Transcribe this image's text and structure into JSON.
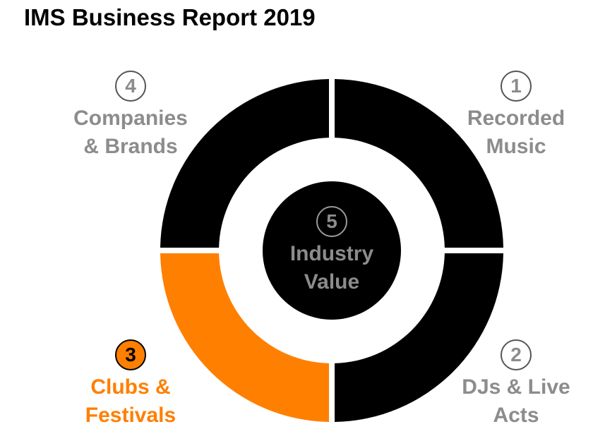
{
  "title": "IMS Business Report 2019",
  "colors": {
    "segment_default": "#000000",
    "segment_highlight": "#FF7F00",
    "label_default": "#8C8C8C",
    "label_highlight": "#FF7F00",
    "number_circle_border": "#555555",
    "center_number_border": "#9A9A9A"
  },
  "segments": [
    {
      "number": "1",
      "label": "Recorded Music",
      "lines": [
        "Recorded",
        "Music"
      ],
      "position": "top-right",
      "highlighted": false
    },
    {
      "number": "2",
      "label": "DJs & Live Acts",
      "lines": [
        "DJs & Live",
        "Acts"
      ],
      "position": "bottom-right",
      "highlighted": false
    },
    {
      "number": "3",
      "label": "Clubs & Festivals",
      "lines": [
        "Clubs &",
        "Festivals"
      ],
      "position": "bottom-left",
      "highlighted": true
    },
    {
      "number": "4",
      "label": "Companies & Brands",
      "lines": [
        "Companies",
        "& Brands"
      ],
      "position": "top-left",
      "highlighted": false
    }
  ],
  "center": {
    "number": "5",
    "label": "Industry Value",
    "lines": [
      "Industry",
      "Value"
    ]
  }
}
